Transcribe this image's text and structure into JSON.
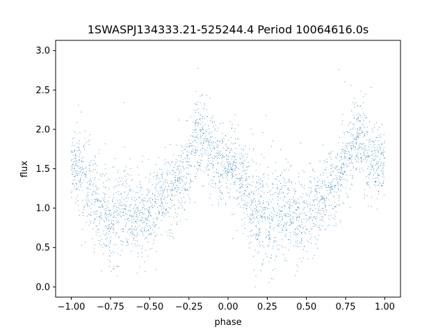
{
  "chart_data": {
    "type": "scatter",
    "title": "1SWASPJ134333.21-525244.4 Period 10064616.0s",
    "xlabel": "phase",
    "ylabel": "flux",
    "xlim": [
      -1.1,
      1.1
    ],
    "ylim": [
      -0.13,
      3.13
    ],
    "x_ticks": [
      -1.0,
      -0.75,
      -0.5,
      -0.25,
      0.0,
      0.25,
      0.5,
      0.75,
      1.0
    ],
    "x_tick_labels": [
      "−1.00",
      "−0.75",
      "−0.50",
      "−0.25",
      "0.00",
      "0.25",
      "0.50",
      "0.75",
      "1.00"
    ],
    "y_ticks": [
      0.0,
      0.5,
      1.0,
      1.5,
      2.0,
      2.5,
      3.0
    ],
    "y_tick_labels": [
      "0.0",
      "0.5",
      "1.0",
      "1.5",
      "2.0",
      "2.5",
      "3.0"
    ],
    "grid": false,
    "point_color": "#1f77b4",
    "series": [
      {
        "x_range": [
          -1.0,
          1.0
        ],
        "profile": {
          "phase": [
            0.0,
            0.05,
            0.1,
            0.15,
            0.2,
            0.25,
            0.3,
            0.35,
            0.4,
            0.45,
            0.5,
            0.55,
            0.6,
            0.65,
            0.7,
            0.75,
            0.8,
            0.85,
            0.9,
            0.95,
            1.0
          ],
          "median_flux": [
            1.6,
            1.5,
            1.25,
            1.05,
            0.95,
            0.85,
            0.9,
            1.05,
            0.9,
            0.85,
            0.95,
            1.05,
            1.15,
            1.25,
            1.35,
            1.55,
            1.95,
            1.85,
            1.6,
            1.55,
            1.6
          ],
          "scatter": [
            0.2,
            0.25,
            0.3,
            0.3,
            0.3,
            0.3,
            0.35,
            0.3,
            0.25,
            0.25,
            0.25,
            0.25,
            0.25,
            0.25,
            0.25,
            0.25,
            0.25,
            0.25,
            0.3,
            0.25,
            0.2
          ]
        }
      }
    ]
  }
}
